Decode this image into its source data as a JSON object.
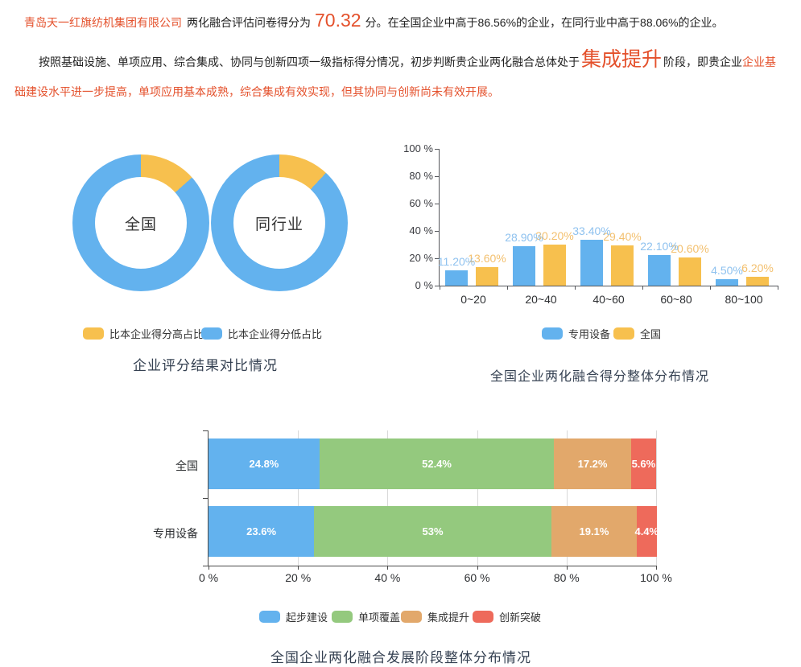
{
  "intro": {
    "company": "青岛天一红旗纺机集团有限公司",
    "score_prefix": "两化融合评估问卷得分为",
    "score": "70.32",
    "score_unit": "分。",
    "tail": "在全国企业中高于86.56%的企业，在同行业中高于88.06%的企业。",
    "national_higher_than_pct": "86.56%",
    "industry_higher_than_pct": "88.06%"
  },
  "assessment": {
    "part1": "按照基础设施、单项应用、综合集成、协同与创新四项一级指标得分情况，初步判断贵企业两化融合总体处于",
    "stage": "集成提升",
    "part2": "阶段，即贵企业",
    "part3": "企业基础建设水平进一步提高，单项应用基本成熟，综合集成有效实现，但其协同与创新尚未有效开展。"
  },
  "colors": {
    "blue": "#63b2ee",
    "yellow": "#f7c04e",
    "green": "#94c97e",
    "stack_orange": "#e2a86b",
    "red": "#ee6a5b",
    "bar_label_blue": "#8fc2ef",
    "bar_label_orange": "#f3c06f",
    "accent_text": "#e4512c",
    "title_text": "#354152"
  },
  "chart_data": [
    {
      "type": "pie",
      "title": "企业评分结果对比情况",
      "legend": [
        "比本企业得分高占比",
        "比本企业得分低占比"
      ],
      "legend_position": "bottom",
      "donuts": [
        {
          "label": "全国",
          "higher_pct": 13.44,
          "lower_pct": 86.56
        },
        {
          "label": "同行业",
          "higher_pct": 11.94,
          "lower_pct": 88.06
        }
      ]
    },
    {
      "type": "bar",
      "title": "全国企业两化融合得分整体分布情况",
      "categories": [
        "0~20",
        "20~40",
        "40~60",
        "60~80",
        "80~100"
      ],
      "series": [
        {
          "name": "专用设备",
          "values": [
            11.2,
            28.9,
            33.4,
            22.1,
            4.5
          ],
          "labels": [
            "11.20%",
            "28.90%",
            "33.40%",
            "22.10%",
            "4.50%"
          ]
        },
        {
          "name": "全国",
          "values": [
            13.6,
            30.2,
            29.4,
            20.6,
            6.2
          ],
          "labels": [
            "13.60%",
            "30.20%",
            "29.40%",
            "20.60%",
            "6.20%"
          ]
        }
      ],
      "yticks": [
        "0 %",
        "20 %",
        "40 %",
        "60 %",
        "80 %",
        "100 %"
      ],
      "ylim": [
        0,
        100
      ],
      "grid": false,
      "legend_position": "bottom"
    },
    {
      "type": "bar",
      "variant": "horizontal-stacked",
      "title": "全国企业两化融合发展阶段整体分布情况",
      "stages": [
        "起步建设",
        "单项覆盖",
        "集成提升",
        "创新突破"
      ],
      "rows": [
        {
          "name": "全国",
          "values": [
            24.8,
            52.4,
            17.2,
            5.6
          ],
          "labels": [
            "24.8%",
            "52.4%",
            "17.2%",
            "5.6%"
          ]
        },
        {
          "name": "专用设备",
          "values": [
            23.6,
            53,
            19.1,
            4.4
          ],
          "labels": [
            "23.6%",
            "53%",
            "19.1%",
            "4.4%"
          ]
        }
      ],
      "xticks": [
        "0 %",
        "20 %",
        "40 %",
        "60 %",
        "80 %",
        "100 %"
      ],
      "xlim": [
        0,
        100
      ],
      "grid": true,
      "legend_position": "bottom"
    }
  ]
}
